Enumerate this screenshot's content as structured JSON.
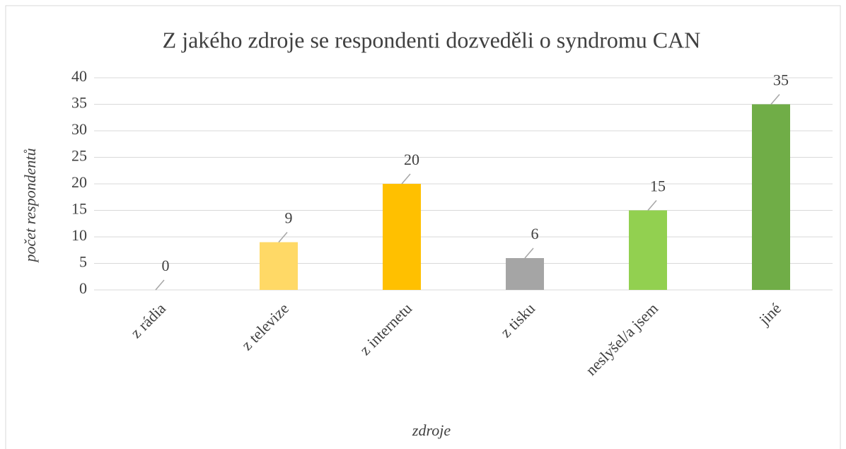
{
  "chart_data": {
    "type": "bar",
    "title": "Z jakého zdroje se respondenti dozveděli o syndromu CAN",
    "x_label": "zdroje",
    "y_label": "počet respondentů",
    "categories": [
      "z rádia",
      "z televize",
      "z internetu",
      "z tisku",
      "neslyšel/a jsem",
      "jiné"
    ],
    "values": [
      0,
      9,
      20,
      6,
      15,
      35
    ],
    "colors": [
      "#ffe699",
      "#ffd966",
      "#ffc000",
      "#a5a5a5",
      "#92d050",
      "#70ad47"
    ],
    "ylim": [
      0,
      40
    ],
    "yticks": [
      0,
      5,
      10,
      15,
      20,
      25,
      30,
      35,
      40
    ],
    "grid": true
  }
}
